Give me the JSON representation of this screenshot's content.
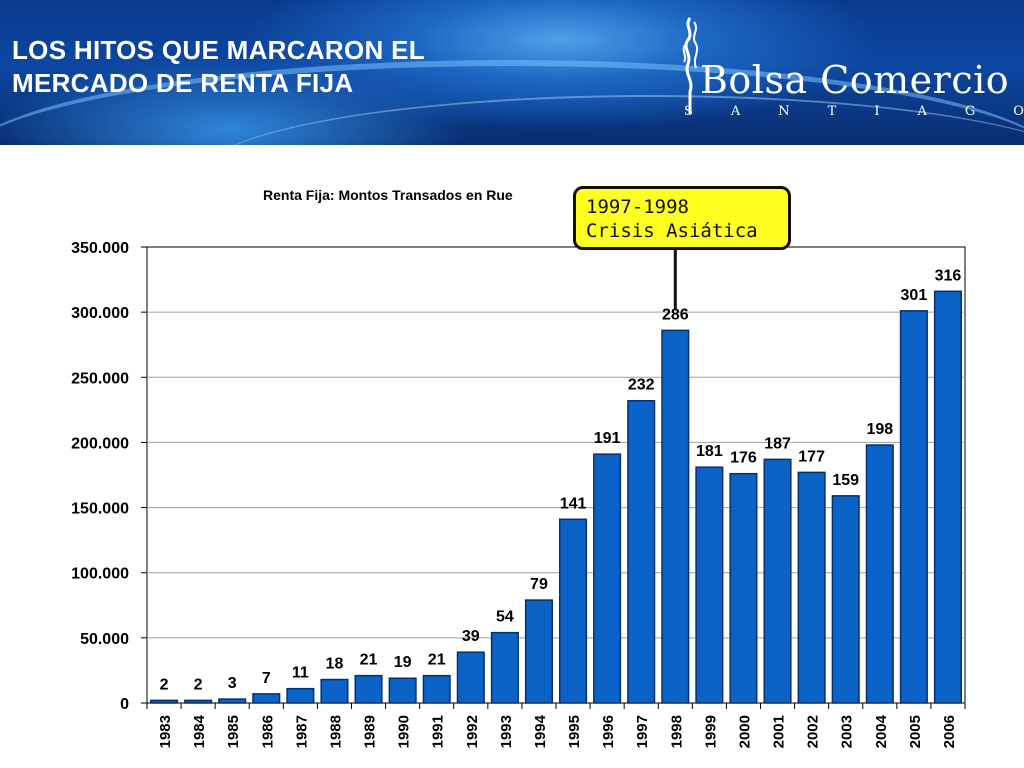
{
  "slide": {
    "title_line1": "LOS HITOS QUE MARCARON EL",
    "title_line2": "MERCADO DE RENTA FIJA"
  },
  "logo": {
    "name": "Bolsa Comercio",
    "sub": "SANTIAGO",
    "icon": "bolsa-quill-logo"
  },
  "callout": {
    "line1": "1997-1998",
    "line2": "Crisis Asiática",
    "points_to": "1998"
  },
  "colors": {
    "bar": "#0b63c8",
    "bar_stroke": "#06306b",
    "banner": "#0d47a1",
    "callout_bg": "#ffff22"
  },
  "chart_data": {
    "type": "bar",
    "title": "Renta Fija: Montos Transados en Rue",
    "xlabel": "",
    "ylabel": "",
    "categories": [
      "1983",
      "1984",
      "1985",
      "1986",
      "1987",
      "1988",
      "1989",
      "1990",
      "1991",
      "1992",
      "1993",
      "1994",
      "1995",
      "1996",
      "1997",
      "1998",
      "1999",
      "2000",
      "2001",
      "2002",
      "2003",
      "2004",
      "2005",
      "2006"
    ],
    "values": [
      2000,
      2000,
      3000,
      7000,
      11000,
      18000,
      21000,
      19000,
      21000,
      39000,
      54000,
      79000,
      141000,
      191000,
      232000,
      286000,
      181000,
      176000,
      187000,
      177000,
      159000,
      198000,
      301000,
      316000
    ],
    "data_labels": [
      "2",
      "2",
      "3",
      "7",
      "11",
      "18",
      "21",
      "19",
      "21",
      "39",
      "54",
      "79",
      "141",
      "191",
      "232",
      "286",
      "181",
      "176",
      "187",
      "177",
      "159",
      "198",
      "301",
      "316"
    ],
    "y_ticks": [
      "0",
      "50.000",
      "100.000",
      "150.000",
      "200.000",
      "250.000",
      "300.000",
      "350.000"
    ],
    "ylim": [
      0,
      350000
    ],
    "grid": true,
    "legend": "none"
  }
}
